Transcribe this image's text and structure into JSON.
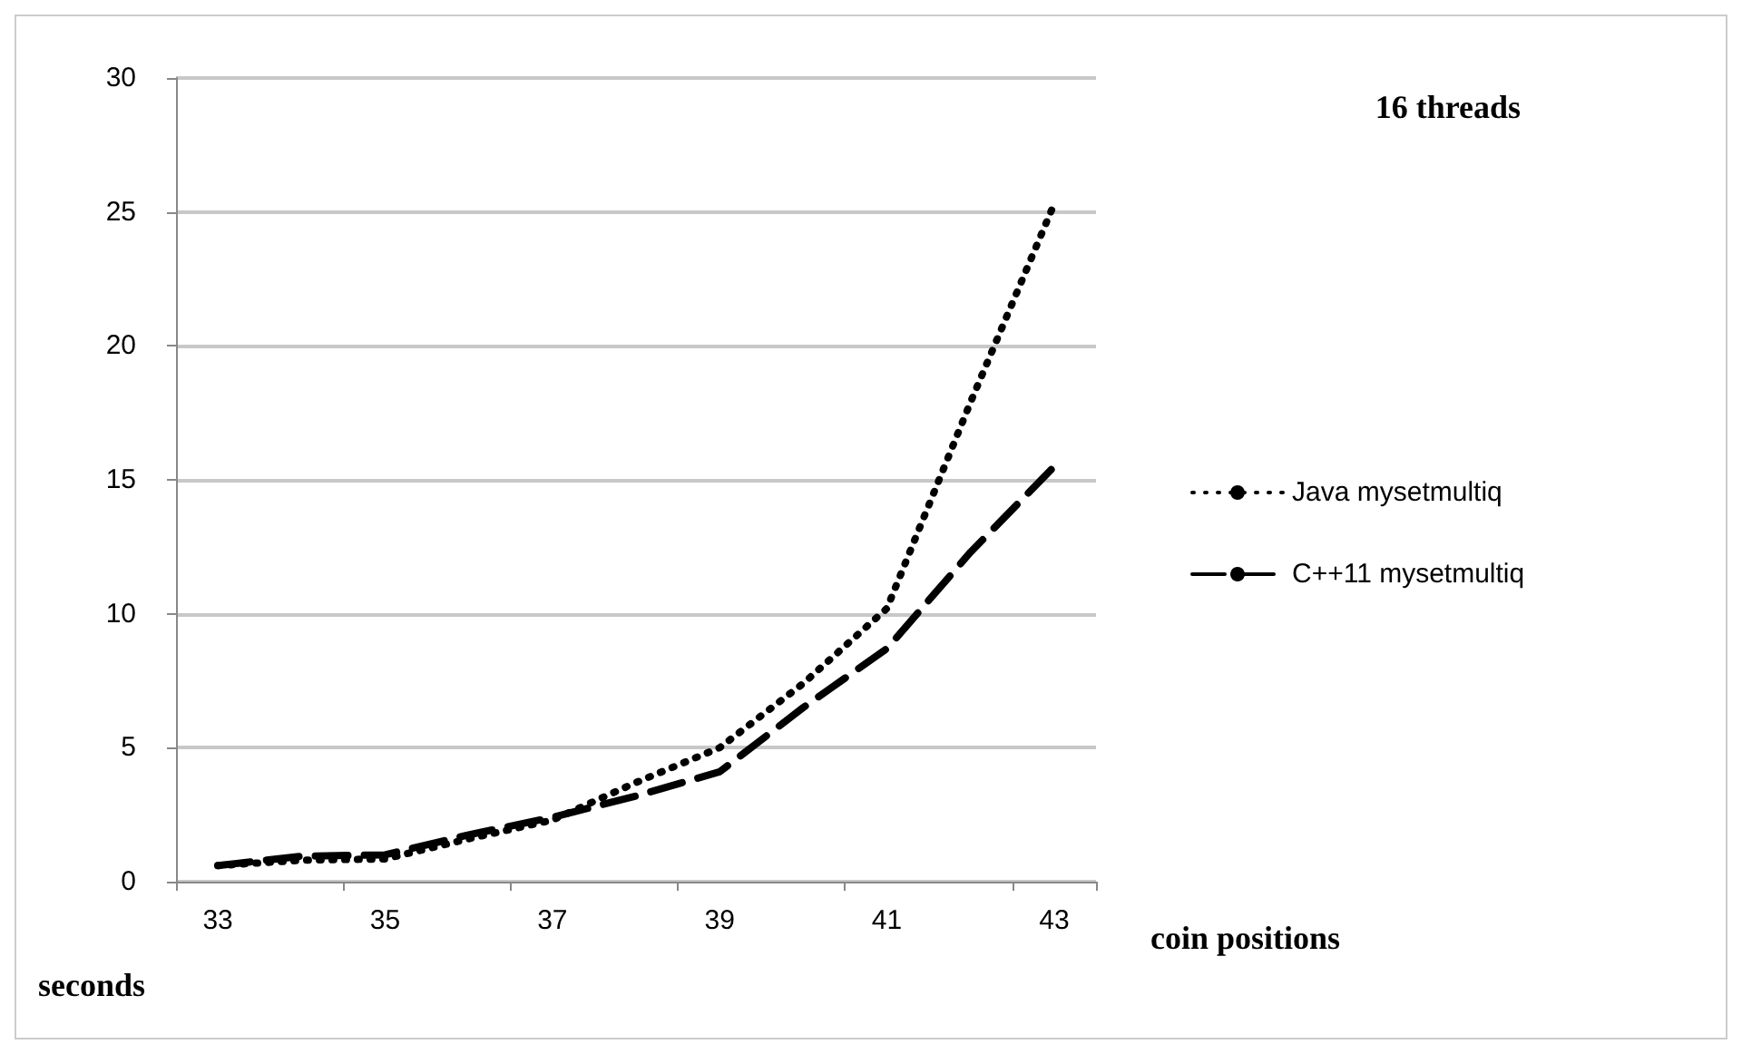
{
  "chart_data": {
    "type": "line",
    "title": "16 threads",
    "xlabel": "coin positions",
    "ylabel": "seconds",
    "categories": [
      "33",
      null,
      "35",
      null,
      "37",
      null,
      "39",
      null,
      "41",
      null,
      "43"
    ],
    "series": [
      {
        "name": "Java mysetmultiq",
        "color": "#000000",
        "line_style": "dotted",
        "values": [
          0.6,
          0.8,
          0.85,
          1.6,
          2.3,
          3.7,
          5.0,
          7.4,
          10.2,
          17.9,
          25.3
        ]
      },
      {
        "name": "C++11 mysetmultiq",
        "color": "#000000",
        "line_style": "dashed",
        "values": [
          0.6,
          0.95,
          1.0,
          1.75,
          2.4,
          3.2,
          4.1,
          6.5,
          8.7,
          12.3,
          15.5
        ]
      }
    ],
    "ylim": [
      0,
      30
    ],
    "yticks": [
      0,
      5,
      10,
      15,
      20,
      25,
      30
    ],
    "grid": "y",
    "legend": "right",
    "marker": "none"
  }
}
